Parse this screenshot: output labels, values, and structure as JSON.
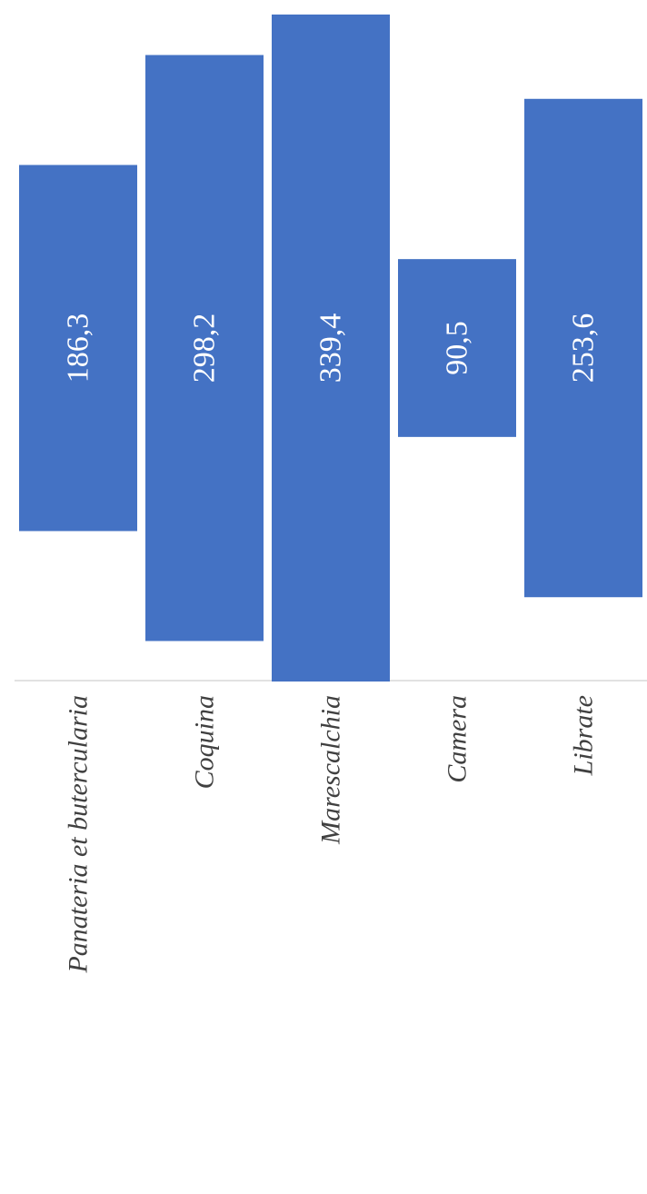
{
  "chart_data": {
    "type": "bar",
    "orientation": "rotated-vertical",
    "categories": [
      "Panateria et butercularia",
      "Coquina",
      "Marescalchia",
      "Camera",
      "Librate"
    ],
    "values": [
      186.3,
      298.2,
      339.4,
      90.5,
      253.6
    ],
    "value_labels": [
      "186,3",
      "298,2",
      "339,4",
      "90,5",
      "253,6"
    ],
    "bar_color": "#4472C4",
    "axis_color": "#D9D9D9",
    "title": "",
    "xlabel": "",
    "ylabel": "",
    "grid": false,
    "legend": "none"
  }
}
